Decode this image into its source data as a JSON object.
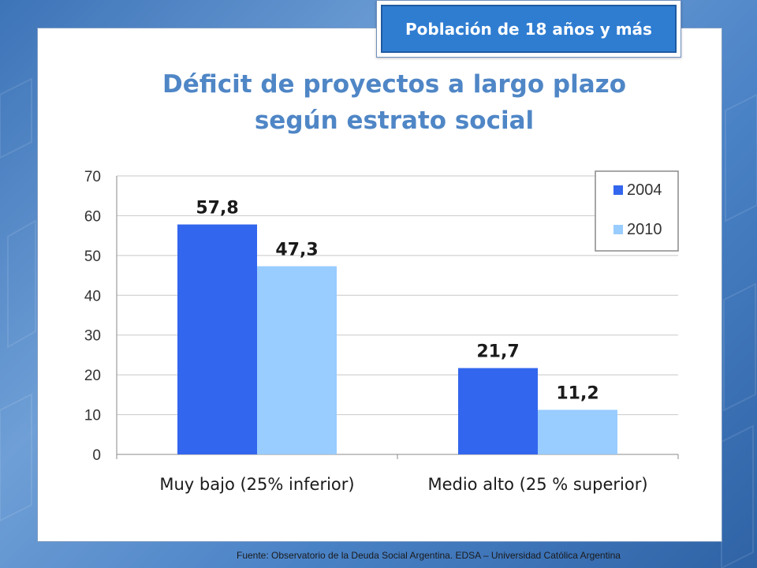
{
  "badge": {
    "text": "Población de 18 años y más"
  },
  "title": {
    "line1": "Déficit de proyectos a largo plazo",
    "line2": "según estrato social"
  },
  "source": "Fuente:   Observatorio de  la Deuda Social Argentina. EDSA  –  Universidad Católica Argentina",
  "chart_data": {
    "type": "bar",
    "title": "Déficit de proyectos a largo plazo según estrato social",
    "categories": [
      "Muy bajo (25% inferior)",
      "Medio alto (25 % superior)"
    ],
    "series": [
      {
        "name": "2004",
        "values": [
          57.8,
          21.7
        ],
        "labels": [
          "57,8",
          "21,7"
        ],
        "color": "#3366ee"
      },
      {
        "name": "2010",
        "values": [
          47.3,
          11.2
        ],
        "labels": [
          "47,3",
          "11,2"
        ],
        "color": "#99ccff"
      }
    ],
    "ylim": [
      0,
      70
    ],
    "yticks": [
      0,
      10,
      20,
      30,
      40,
      50,
      60,
      70
    ],
    "grid": true,
    "legend_position": "top-right"
  }
}
